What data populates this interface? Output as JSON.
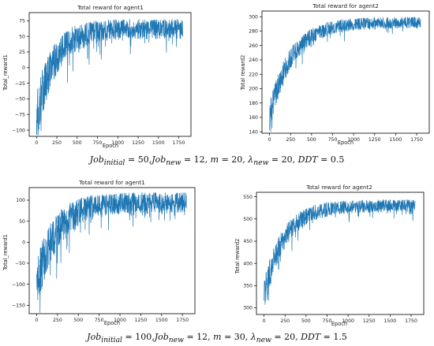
{
  "chart_data": [
    {
      "type": "line",
      "title": "Total reward for agent1",
      "xlabel": "Epoch",
      "ylabel": "Total_reward1",
      "xlim": [
        -90,
        1900
      ],
      "ylim": [
        -110,
        88
      ],
      "xticks": [
        0,
        250,
        500,
        750,
        1000,
        1250,
        1500,
        1750
      ],
      "yticks": [
        -100,
        -75,
        -50,
        -25,
        0,
        25,
        50,
        75
      ],
      "series": [
        {
          "color": "#1f77b4",
          "n_points": 1800,
          "start": -80,
          "plateau": 62,
          "tau": 220,
          "noise_amp": 16
        }
      ]
    },
    {
      "type": "line",
      "title": "Total reward for agent2",
      "xlabel": "Epoch",
      "ylabel": "Total reward2",
      "xlim": [
        -90,
        1900
      ],
      "ylim": [
        138,
        308
      ],
      "xticks": [
        0,
        250,
        500,
        750,
        1000,
        1250,
        1500,
        1750
      ],
      "yticks": [
        140,
        160,
        180,
        200,
        220,
        240,
        260,
        280,
        300
      ],
      "series": [
        {
          "color": "#1f77b4",
          "n_points": 1800,
          "start": 160,
          "plateau": 292,
          "tau": 260,
          "noise_amp": 8
        }
      ]
    },
    {
      "type": "line",
      "title": "Total reward for agent1",
      "xlabel": "Epoch",
      "ylabel": "Total_reward1",
      "xlim": [
        -90,
        1900
      ],
      "ylim": [
        -170,
        130
      ],
      "xticks": [
        0,
        250,
        500,
        750,
        1000,
        1250,
        1500,
        1750
      ],
      "yticks": [
        -150,
        -100,
        -50,
        0,
        50,
        100
      ],
      "series": [
        {
          "color": "#1f77b4",
          "n_points": 1800,
          "start": -100,
          "plateau": 95,
          "tau": 240,
          "noise_amp": 24
        }
      ]
    },
    {
      "type": "line",
      "title": "Total reward for agent2",
      "xlabel": "Epoch",
      "ylabel": "Total reward2",
      "xlim": [
        -90,
        1900
      ],
      "ylim": [
        285,
        560
      ],
      "xticks": [
        0,
        250,
        500,
        750,
        1000,
        1250,
        1500,
        1750
      ],
      "yticks": [
        300,
        350,
        400,
        450,
        500,
        550
      ],
      "series": [
        {
          "color": "#1f77b4",
          "n_points": 1800,
          "start": 330,
          "plateau": 530,
          "tau": 240,
          "noise_amp": 14
        }
      ]
    }
  ],
  "captions": [
    {
      "job_initial_sub": "initial",
      "job_initial_val": "50",
      "job_new_sub": "new",
      "job_new_val": "12",
      "m_val": "20",
      "lambda_sub": "new",
      "lambda_val": "20",
      "ddt_val": "0.5"
    },
    {
      "job_initial_sub": "initial",
      "job_initial_val": "100",
      "job_new_sub": "new",
      "job_new_val": "12",
      "m_val": "30",
      "lambda_sub": "new",
      "lambda_val": "20",
      "ddt_val": "1.5"
    }
  ]
}
